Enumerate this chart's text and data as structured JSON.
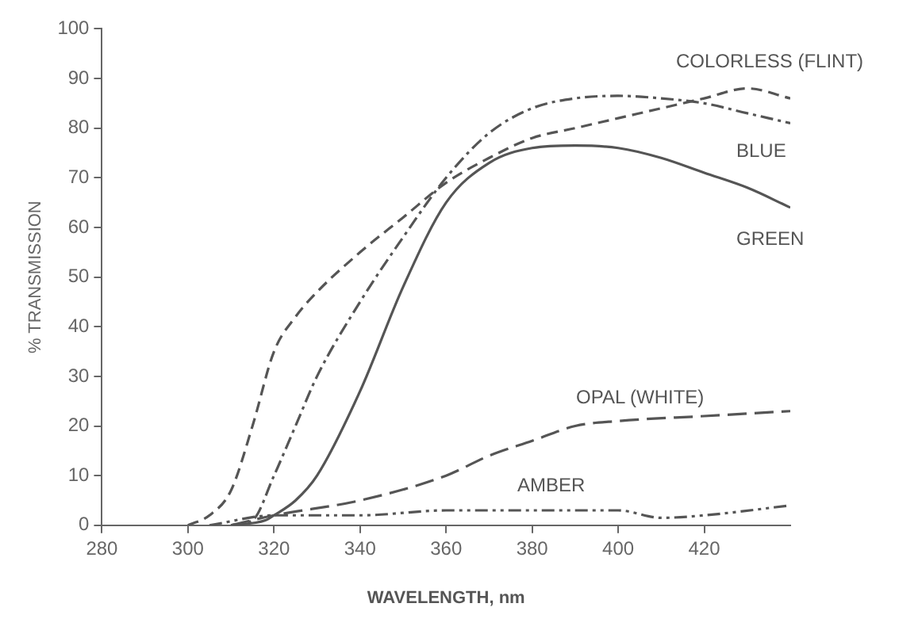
{
  "chart_data": {
    "type": "line",
    "xlabel": "WAVELENGTH, nm",
    "ylabel": "% TRANSMISSION",
    "xlim": [
      280,
      440
    ],
    "xticks": [
      280,
      300,
      320,
      340,
      360,
      380,
      400,
      420
    ],
    "ylim": [
      0,
      100
    ],
    "yticks": [
      0,
      10,
      20,
      30,
      40,
      50,
      60,
      70,
      80,
      90,
      100
    ],
    "grid": false,
    "legend": false,
    "marker": "none",
    "series": [
      {
        "name": "COLORLESS (FLINT)",
        "color": "#555555",
        "line_style": "dashed",
        "x": [
          300,
          305,
          310,
          315,
          320,
          325,
          330,
          340,
          350,
          360,
          370,
          380,
          390,
          400,
          410,
          420,
          430,
          440
        ],
        "values": [
          0,
          2,
          7,
          20,
          35,
          42,
          47,
          55,
          62,
          69,
          74,
          78,
          80,
          82,
          84,
          86,
          88,
          86
        ]
      },
      {
        "name": "BLUE",
        "color": "#555555",
        "line_style": "dashdot",
        "x": [
          310,
          315,
          320,
          325,
          330,
          340,
          350,
          360,
          370,
          380,
          390,
          400,
          410,
          420,
          430,
          440
        ],
        "values": [
          0,
          1,
          10,
          20,
          30,
          45,
          58,
          70,
          79,
          84,
          86,
          86.5,
          86,
          85,
          83,
          81
        ]
      },
      {
        "name": "GREEN",
        "color": "#555555",
        "line_style": "solid",
        "x": [
          310,
          318,
          320,
          325,
          330,
          340,
          350,
          360,
          370,
          380,
          390,
          400,
          410,
          420,
          430,
          440
        ],
        "values": [
          0,
          1,
          2,
          5,
          10,
          27,
          48,
          65,
          73,
          76,
          76.5,
          76,
          74,
          71,
          68,
          64
        ]
      },
      {
        "name": "OPAL (WHITE)",
        "color": "#555555",
        "line_style": "longdash",
        "x": [
          310,
          320,
          340,
          360,
          370,
          380,
          390,
          400,
          420,
          440
        ],
        "values": [
          0,
          2,
          5,
          10,
          14,
          17,
          20,
          21,
          22,
          23
        ]
      },
      {
        "name": "AMBER",
        "color": "#555555",
        "line_style": "dashdotdot",
        "x": [
          305,
          320,
          340,
          360,
          380,
          400,
          410,
          420,
          440
        ],
        "values": [
          0,
          2,
          2,
          3,
          3,
          3,
          1.5,
          2,
          4
        ]
      }
    ]
  }
}
